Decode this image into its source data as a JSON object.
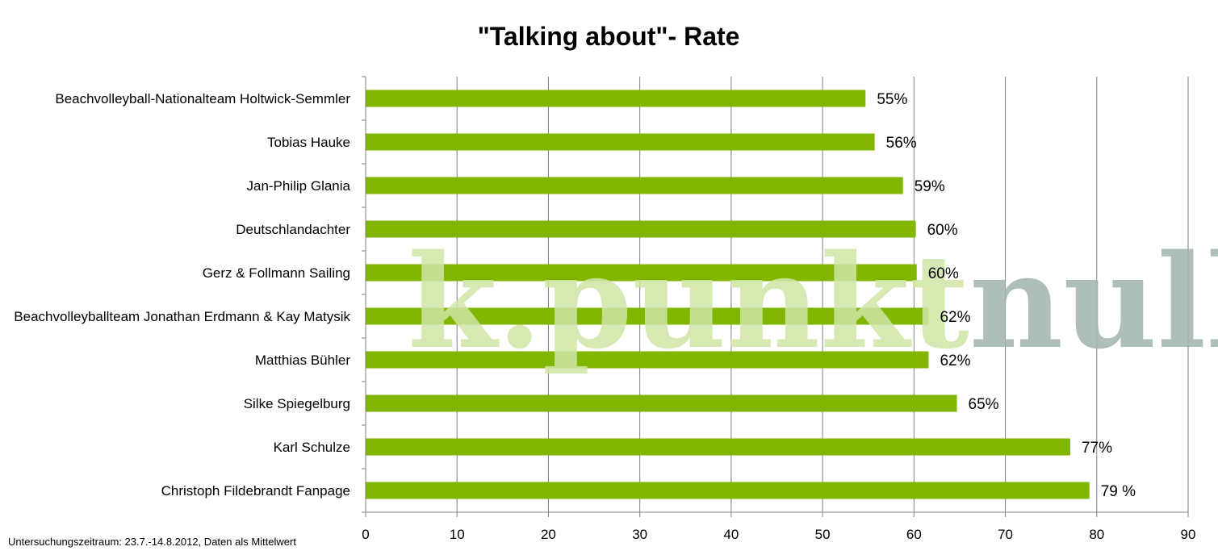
{
  "chart_data": {
    "type": "bar",
    "orientation": "horizontal",
    "title": "\"Talking about\"- Rate",
    "xlabel": "",
    "ylabel": "",
    "xlim": [
      0,
      90
    ],
    "xticks": [
      0,
      10,
      20,
      30,
      40,
      50,
      60,
      70,
      80,
      90
    ],
    "grid": true,
    "categories": [
      "Beachvolleyball-Nationalteam Holtwick-Semmler",
      "Tobias Hauke",
      "Jan-Philip Glania",
      "Deutschlandachter",
      "Gerz & Follmann Sailing",
      "Beachvolleyballteam Jonathan Erdmann & Kay Matysik",
      "Matthias Bühler",
      "Silke Spiegelburg",
      "Karl Schulze",
      "Christoph Fildebrandt Fanpage"
    ],
    "values": [
      54.7,
      55.7,
      58.8,
      60.2,
      60.3,
      61.6,
      61.6,
      64.7,
      77.1,
      79.2
    ],
    "data_labels": [
      "55%",
      "56%",
      "59%",
      "60%",
      "60%",
      "62%",
      "62%",
      "65%",
      "77%",
      "79 %"
    ],
    "bar_color": "#80b500",
    "grid_color": "#7f7f7f"
  },
  "watermark": {
    "part1": "k.punkt",
    "part2": "null",
    "color1": "#cfe6a6",
    "color2": "#9fb5aa"
  },
  "footnote": "Untersuchungszeitraum: 23.7.-14.8.2012, Daten als Mittelwert"
}
